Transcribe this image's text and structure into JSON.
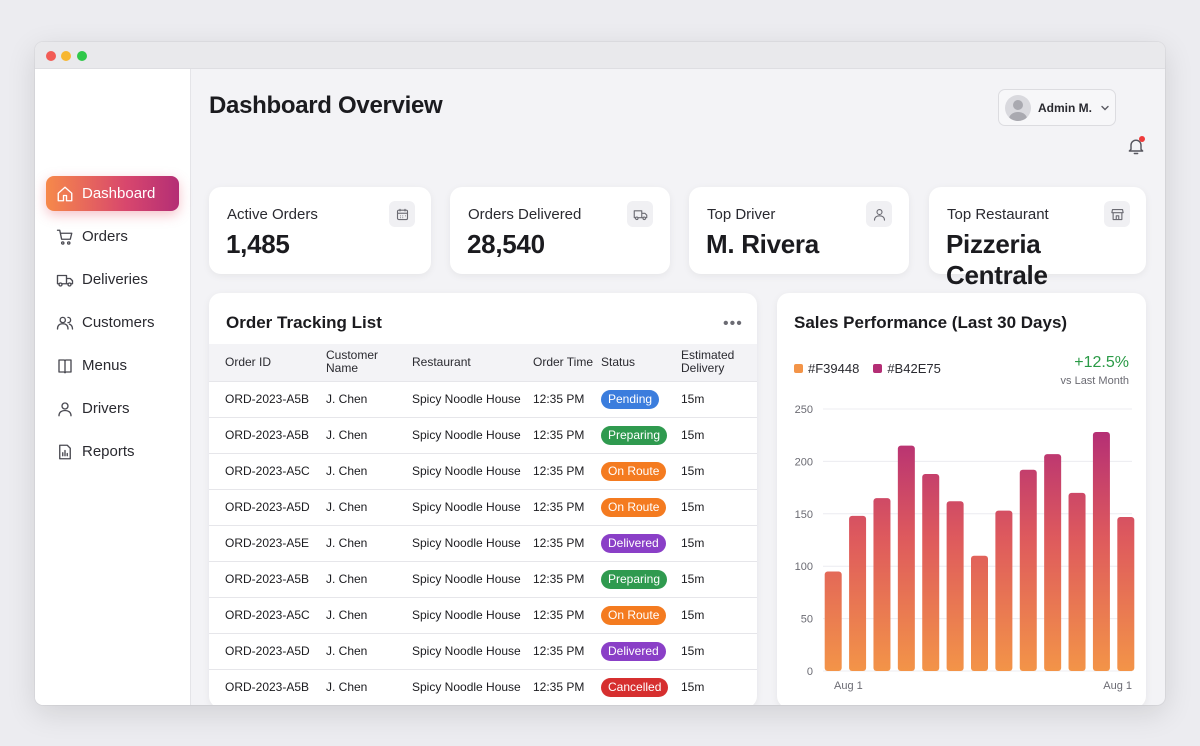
{
  "window": {
    "controls": [
      "close",
      "minimize",
      "zoom"
    ]
  },
  "sidebar": {
    "items": [
      {
        "label": "Dashboard",
        "icon": "home-icon",
        "active": true
      },
      {
        "label": "Orders",
        "icon": "cart-icon",
        "active": false
      },
      {
        "label": "Deliveries",
        "icon": "truck-icon",
        "active": false
      },
      {
        "label": "Customers",
        "icon": "users-icon",
        "active": false
      },
      {
        "label": "Menus",
        "icon": "book-icon",
        "active": false
      },
      {
        "label": "Drivers",
        "icon": "user-icon",
        "active": false
      },
      {
        "label": "Reports",
        "icon": "report-icon",
        "active": false
      }
    ]
  },
  "header": {
    "title": "Dashboard Overview",
    "user_name": "Admin M.",
    "notification_dot": true
  },
  "kpis": [
    {
      "label": "Active Orders",
      "value": "1,485",
      "icon": "calendar-icon"
    },
    {
      "label": "Orders Delivered",
      "value": "28,540",
      "icon": "truck-icon"
    },
    {
      "label": "Top Driver",
      "value": "M. Rivera",
      "icon": "user-icon"
    },
    {
      "label": "Top Restaurant",
      "value": "Pizzeria Centrale",
      "icon": "store-icon"
    }
  ],
  "orders": {
    "title": "Order Tracking List",
    "columns": [
      "Order ID",
      "Customer Name",
      "Restaurant",
      "Order Time",
      "Status",
      "Estimated Delivery"
    ],
    "rows": [
      {
        "id": "ORD-2023-A5B",
        "customer": "J. Chen",
        "restaurant": "Spicy Noodle House",
        "time": "12:35 PM",
        "status": "Pending",
        "eta": "15m"
      },
      {
        "id": "ORD-2023-A5B",
        "customer": "J. Chen",
        "restaurant": "Spicy Noodle House",
        "time": "12:35 PM",
        "status": "Preparing",
        "eta": "15m"
      },
      {
        "id": "ORD-2023-A5C",
        "customer": "J. Chen",
        "restaurant": "Spicy Noodle House",
        "time": "12:35 PM",
        "status": "On Route",
        "eta": "15m"
      },
      {
        "id": "ORD-2023-A5D",
        "customer": "J. Chen",
        "restaurant": "Spicy Noodle House",
        "time": "12:35 PM",
        "status": "On Route",
        "eta": "15m"
      },
      {
        "id": "ORD-2023-A5E",
        "customer": "J. Chen",
        "restaurant": "Spicy Noodle House",
        "time": "12:35 PM",
        "status": "Delivered",
        "eta": "15m"
      },
      {
        "id": "ORD-2023-A5B",
        "customer": "J. Chen",
        "restaurant": "Spicy Noodle House",
        "time": "12:35 PM",
        "status": "Preparing",
        "eta": "15m"
      },
      {
        "id": "ORD-2023-A5C",
        "customer": "J. Chen",
        "restaurant": "Spicy Noodle House",
        "time": "12:35 PM",
        "status": "On Route",
        "eta": "15m"
      },
      {
        "id": "ORD-2023-A5D",
        "customer": "J. Chen",
        "restaurant": "Spicy Noodle House",
        "time": "12:35 PM",
        "status": "Delivered",
        "eta": "15m"
      },
      {
        "id": "ORD-2023-A5B",
        "customer": "J. Chen",
        "restaurant": "Spicy Noodle House",
        "time": "12:35 PM",
        "status": "Cancelled",
        "eta": "15m"
      }
    ],
    "status_colors": {
      "Pending": "#3b7ddd",
      "Preparing": "#2f9a4f",
      "On Route": "#f47b20",
      "Delivered": "#8a3fc7",
      "Cancelled": "#d62f2f"
    }
  },
  "sales": {
    "title": "Sales Performance (Last 30 Days)",
    "change": "+12.5%",
    "change_note": "vs Last Month"
  },
  "chart_data": {
    "type": "bar",
    "legend": [
      {
        "name": "#F39448",
        "color": "#F39448"
      },
      {
        "name": "#B42E75",
        "color": "#B42E75"
      }
    ],
    "x_labels": [
      "Aug 1",
      "Aug 1"
    ],
    "values": [
      95,
      148,
      165,
      215,
      188,
      162,
      110,
      153,
      192,
      207,
      170,
      228,
      147
    ],
    "ylim": [
      0,
      250
    ],
    "yticks": [
      0,
      50,
      100,
      150,
      200,
      250
    ],
    "grid": true,
    "colors": {
      "bottom": "#F39448",
      "top": "#B42E75"
    }
  }
}
